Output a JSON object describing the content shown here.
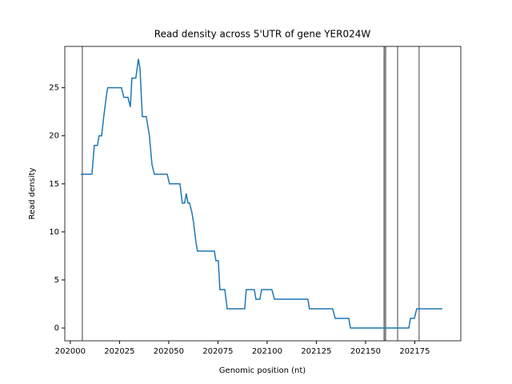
{
  "chart_data": {
    "type": "line",
    "title": "Read density across 5'UTR of gene YER024W",
    "xlabel": "Genomic position (nt)",
    "ylabel": "Read density",
    "xlim": [
      201997.2,
      202198.4
    ],
    "ylim": [
      -1.33,
      29.3
    ],
    "xticks": [
      202000,
      202025,
      202050,
      202075,
      202100,
      202125,
      202150,
      202175
    ],
    "yticks": [
      0,
      5,
      10,
      15,
      20,
      25
    ],
    "color": "#1f77b4",
    "vline_color": "#808080",
    "vlines": [
      202006.1,
      202159.4,
      202159.8,
      202160.2,
      202166.3,
      202177.2
    ],
    "x": [
      202005.3,
      202011,
      202012.2,
      202013.8,
      202014.6,
      202015.9,
      202017,
      202018.3,
      202019,
      202026,
      202027.2,
      202029.3,
      202030.5,
      202031.3,
      202033.3,
      202034.6,
      202035.4,
      202036.6,
      202038.6,
      202040.2,
      202041.5,
      202042.7,
      202049.2,
      202050.4,
      202055.7,
      202056.9,
      202058.1,
      202058.9,
      202059.8,
      202060.6,
      202061.8,
      202062.6,
      202063.8,
      202064.6,
      202073.2,
      202074,
      202075.2,
      202076,
      202078.5,
      202079.7,
      202088.6,
      202089.4,
      202093.5,
      202094.3,
      202096.3,
      202097.2,
      202102.4,
      202103.7,
      202120.7,
      202121.5,
      202133.3,
      202134.6,
      202141.5,
      202142.3,
      202172,
      202172.8,
      202174.8,
      202176,
      202189
    ],
    "values": [
      16,
      16,
      19,
      19,
      20,
      20,
      22,
      24.1,
      25,
      25,
      24,
      24,
      23,
      26,
      26,
      28,
      27,
      22,
      22,
      20,
      17,
      16,
      16,
      15,
      15,
      13,
      13,
      14,
      13,
      13,
      12,
      11,
      9,
      8,
      8,
      7,
      7,
      4,
      4,
      2,
      2,
      4,
      4,
      3,
      3,
      4,
      4,
      3,
      3,
      2,
      2,
      1,
      1,
      0,
      0,
      1,
      1,
      2,
      2
    ]
  }
}
